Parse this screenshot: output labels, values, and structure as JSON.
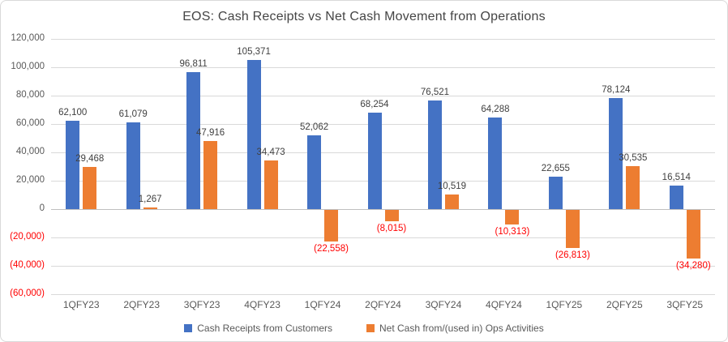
{
  "chart_data": {
    "type": "bar",
    "title": "EOS: Cash Receipts vs Net Cash Movement from Operations",
    "categories": [
      "1QFY23",
      "2QFY23",
      "3QFY23",
      "4QFY23",
      "1QFY24",
      "2QFY24",
      "3QFY24",
      "4QFY24",
      "1QFY25",
      "2QFY25",
      "3QFY25"
    ],
    "series": [
      {
        "name": "Cash Receipts from Customers",
        "color": "#4472C4",
        "values": [
          62100,
          61079,
          96811,
          105371,
          52062,
          68254,
          76521,
          64288,
          22655,
          78124,
          16514
        ],
        "labels": [
          "62,100",
          "61,079",
          "96,811",
          "105,371",
          "52,062",
          "68,254",
          "76,521",
          "64,288",
          "22,655",
          "78,124",
          "16,514"
        ]
      },
      {
        "name": "Net Cash from/(used in) Ops Activities",
        "color": "#ED7D31",
        "values": [
          29468,
          1267,
          47916,
          34473,
          -22558,
          -8015,
          10519,
          -10313,
          -26813,
          30535,
          -34280
        ],
        "labels": [
          "29,468",
          "1,267",
          "47,916",
          "34,473",
          "(22,558)",
          "(8,015)",
          "10,519",
          "(10,313)",
          "(26,813)",
          "30,535",
          "(34,280)"
        ]
      }
    ],
    "y_axis": {
      "min": -60000,
      "max": 120000,
      "step": 20000,
      "tick_labels": [
        "120,000",
        "100,000",
        "80,000",
        "60,000",
        "40,000",
        "20,000",
        "0",
        "(20,000)",
        "(40,000)",
        "(60,000)"
      ]
    },
    "legend_position": "bottom",
    "grid": true,
    "colors": {
      "series_blue": "#4472C4",
      "series_orange": "#ED7D31",
      "negative_label": "#FF0000",
      "axis_text": "#595959",
      "data_label": "#404040",
      "gridline": "#D9D9D9",
      "title_text": "#454545"
    }
  }
}
